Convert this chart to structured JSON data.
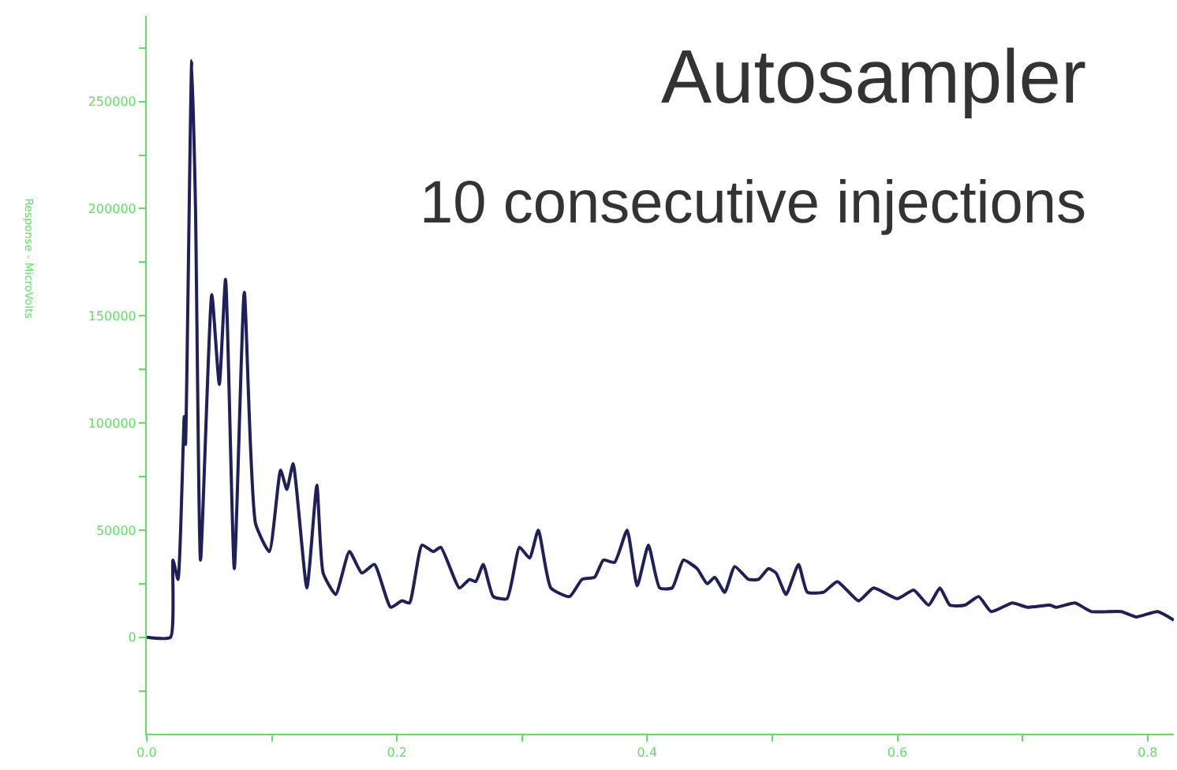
{
  "chart_data": {
    "type": "line",
    "title": "Autosampler",
    "subtitle": "10 consecutive injections",
    "ylabel": "Response - MicroVolts",
    "x": [
      0.0,
      0.019,
      0.021,
      0.025,
      0.03,
      0.031,
      0.036,
      0.039,
      0.043,
      0.052,
      0.058,
      0.063,
      0.07,
      0.078,
      0.087,
      0.098,
      0.107,
      0.112,
      0.117,
      0.128,
      0.136,
      0.141,
      0.151,
      0.162,
      0.172,
      0.182,
      0.195,
      0.204,
      0.21,
      0.22,
      0.229,
      0.235,
      0.25,
      0.258,
      0.263,
      0.269,
      0.277,
      0.288,
      0.298,
      0.306,
      0.313,
      0.323,
      0.338,
      0.348,
      0.358,
      0.365,
      0.374,
      0.384,
      0.392,
      0.401,
      0.41,
      0.42,
      0.429,
      0.44,
      0.448,
      0.454,
      0.462,
      0.47,
      0.481,
      0.489,
      0.497,
      0.503,
      0.511,
      0.521,
      0.528,
      0.541,
      0.552,
      0.569,
      0.581,
      0.6,
      0.613,
      0.625,
      0.634,
      0.642,
      0.654,
      0.665,
      0.675,
      0.692,
      0.704,
      0.722,
      0.727,
      0.742,
      0.755,
      0.779,
      0.791,
      0.808,
      0.821
    ],
    "series": [
      {
        "color": "#1f1f5a",
        "values": [
          0,
          0,
          36000,
          27000,
          103000,
          90000,
          269000,
          200000,
          36000,
          160000,
          118000,
          167000,
          32000,
          161000,
          53000,
          40000,
          78000,
          69000,
          81000,
          23000,
          71000,
          30000,
          20000,
          40000,
          30000,
          34000,
          14000,
          17000,
          16000,
          43000,
          40000,
          42000,
          23000,
          27000,
          26000,
          34000,
          19000,
          18000,
          42000,
          37000,
          50000,
          23000,
          19000,
          27000,
          28000,
          36000,
          35000,
          50000,
          24000,
          43000,
          23000,
          23000,
          36000,
          32000,
          25000,
          28000,
          21000,
          33000,
          27000,
          27000,
          32000,
          30000,
          20000,
          34000,
          21000,
          21000,
          26000,
          17000,
          23000,
          18000,
          22000,
          15000,
          23000,
          15000,
          15000,
          19000,
          12000,
          16000,
          14000,
          15000,
          14000,
          16000,
          12000,
          12000,
          9500,
          12000,
          8000
        ]
      }
    ],
    "xlim": [
      0,
      0.821
    ],
    "ylim": [
      -45000,
      290000
    ],
    "xticks": [
      {
        "value": 0,
        "label": "0.0"
      },
      {
        "value": 0.1,
        "label": null
      },
      {
        "value": 0.2,
        "label": "0.2"
      },
      {
        "value": 0.3,
        "label": null
      },
      {
        "value": 0.4,
        "label": "0.4"
      },
      {
        "value": 0.5,
        "label": null
      },
      {
        "value": 0.6,
        "label": "0.6"
      },
      {
        "value": 0.7,
        "label": null
      },
      {
        "value": 0.8,
        "label": "0.8"
      }
    ],
    "yticks": [
      {
        "value": -25000,
        "label": null
      },
      0,
      {
        "value": 25000,
        "label": null
      },
      50000,
      {
        "value": 75000,
        "label": null
      },
      100000,
      {
        "value": 125000,
        "label": null
      },
      150000,
      {
        "value": 175000,
        "label": null
      },
      200000,
      {
        "value": 225000,
        "label": null
      },
      250000,
      {
        "value": 275000,
        "label": null
      }
    ],
    "marker": "none",
    "line_style": "solid"
  }
}
